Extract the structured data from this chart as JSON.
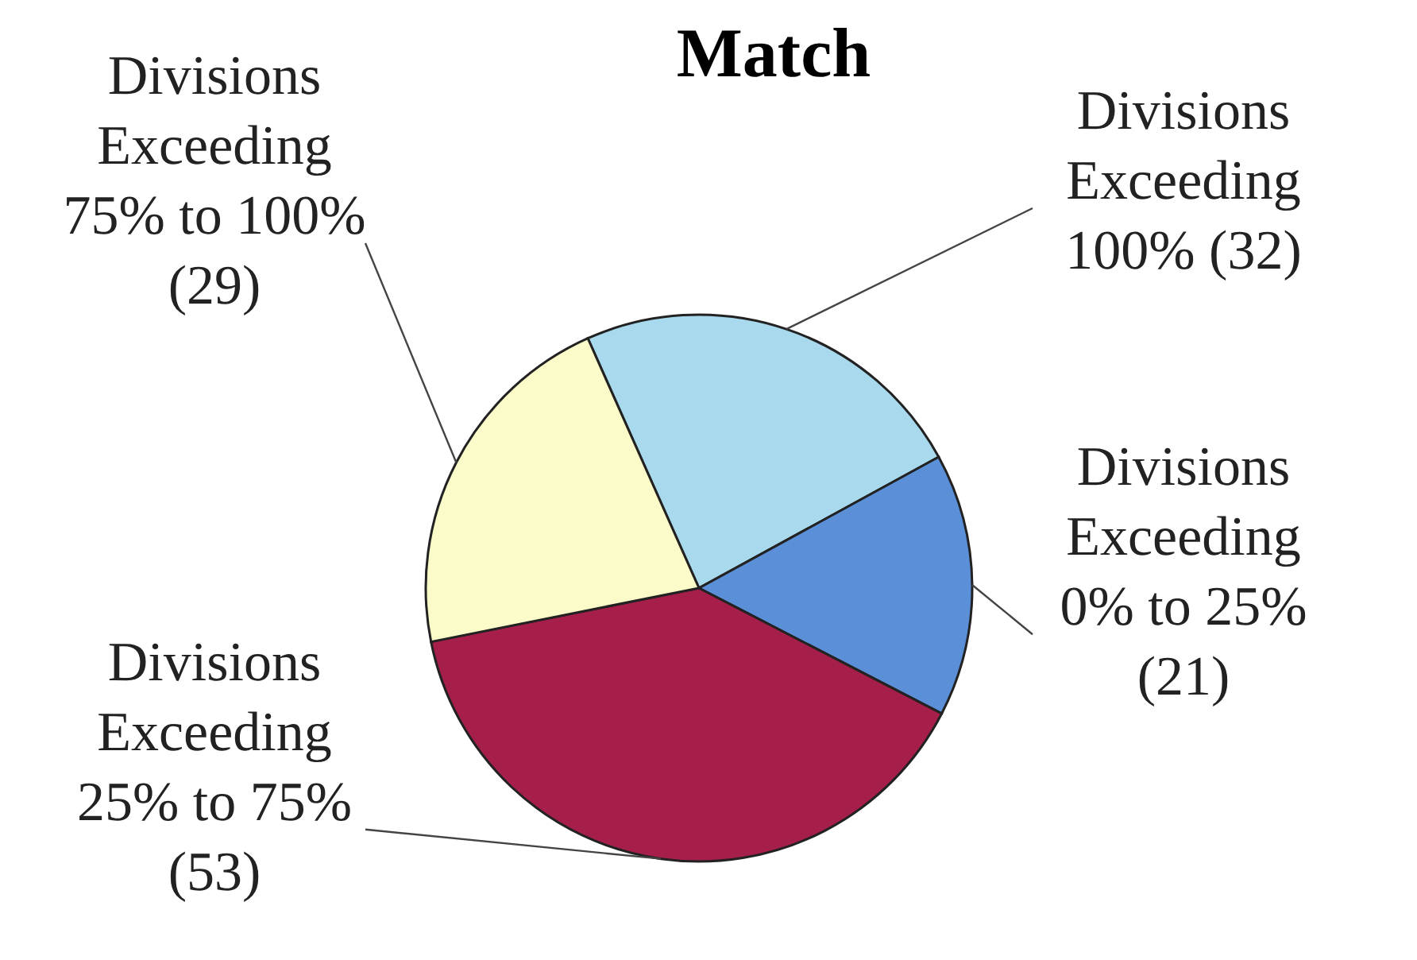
{
  "chart_data": {
    "type": "pie",
    "title": "Match",
    "categories": [
      "Divisions Exceeding 100%",
      "Divisions Exceeding 0% to 25%",
      "Divisions Exceeding 25% to 75%",
      "Divisions Exceeding 75% to 100%"
    ],
    "values": [
      32,
      21,
      53,
      29
    ],
    "value_labels": [
      "(32)",
      "(21)",
      "(53)",
      "(29)"
    ],
    "colors": [
      "#a9d9ec",
      "#5b8fd8",
      "#a61f4b",
      "#fbfbc9"
    ]
  }
}
